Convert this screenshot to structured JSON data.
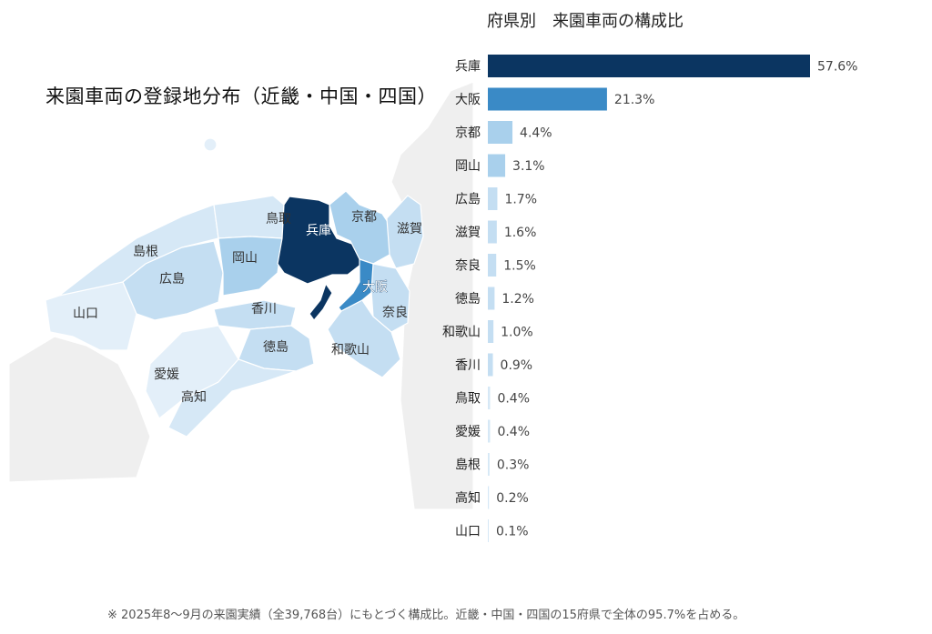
{
  "map": {
    "title": "来園車両の登録地分布（近畿・中国・四国）",
    "labels": {
      "hyogo": "兵庫",
      "osaka": "大阪",
      "kyoto": "京都",
      "shiga": "滋賀",
      "nara": "奈良",
      "wakayama": "和歌山",
      "tottori": "鳥取",
      "okayama": "岡山",
      "shimane": "島根",
      "hiroshima": "広島",
      "yamaguchi": "山口",
      "kagawa": "香川",
      "tokushima": "徳島",
      "ehime": "愛媛",
      "kochi": "高知"
    },
    "colors": {
      "hyogo": "#0b3561",
      "osaka": "#3a8ac6",
      "high": "#a9d0ec",
      "mid": "#c4def2",
      "low": "#d6e8f6",
      "lowest": "#e3eff9",
      "outside": "#efefef",
      "sea": "#ffffff"
    }
  },
  "chart_data": {
    "type": "bar",
    "orientation": "horizontal",
    "title": "府県別　来園車両の構成比",
    "categories": [
      "兵庫",
      "大阪",
      "京都",
      "岡山",
      "広島",
      "滋賀",
      "奈良",
      "徳島",
      "和歌山",
      "香川",
      "鳥取",
      "愛媛",
      "島根",
      "高知",
      "山口"
    ],
    "values": [
      57.6,
      21.3,
      4.4,
      3.1,
      1.7,
      1.6,
      1.5,
      1.2,
      1.0,
      0.9,
      0.4,
      0.4,
      0.3,
      0.2,
      0.1
    ],
    "value_labels": [
      "57.6%",
      "21.3%",
      "4.4%",
      "3.1%",
      "1.7%",
      "1.6%",
      "1.5%",
      "1.2%",
      "1.0%",
      "0.9%",
      "0.4%",
      "0.4%",
      "0.3%",
      "0.2%",
      "0.1%"
    ],
    "colors": [
      "#0b3561",
      "#3a8ac6",
      "#a9d0ec",
      "#a9d0ec",
      "#c4def2",
      "#c4def2",
      "#c4def2",
      "#c4def2",
      "#c4def2",
      "#c4def2",
      "#d6e8f6",
      "#d6e8f6",
      "#d6e8f6",
      "#d6e8f6",
      "#d6e8f6"
    ],
    "xlim": [
      0,
      57.6
    ],
    "grid": false,
    "legend": "none"
  },
  "footnote": "※ 2025年8〜9月の来園実績（全39,768台）にもとづく構成比。近畿・中国・四国の15府県で全体の95.7%を占める。"
}
